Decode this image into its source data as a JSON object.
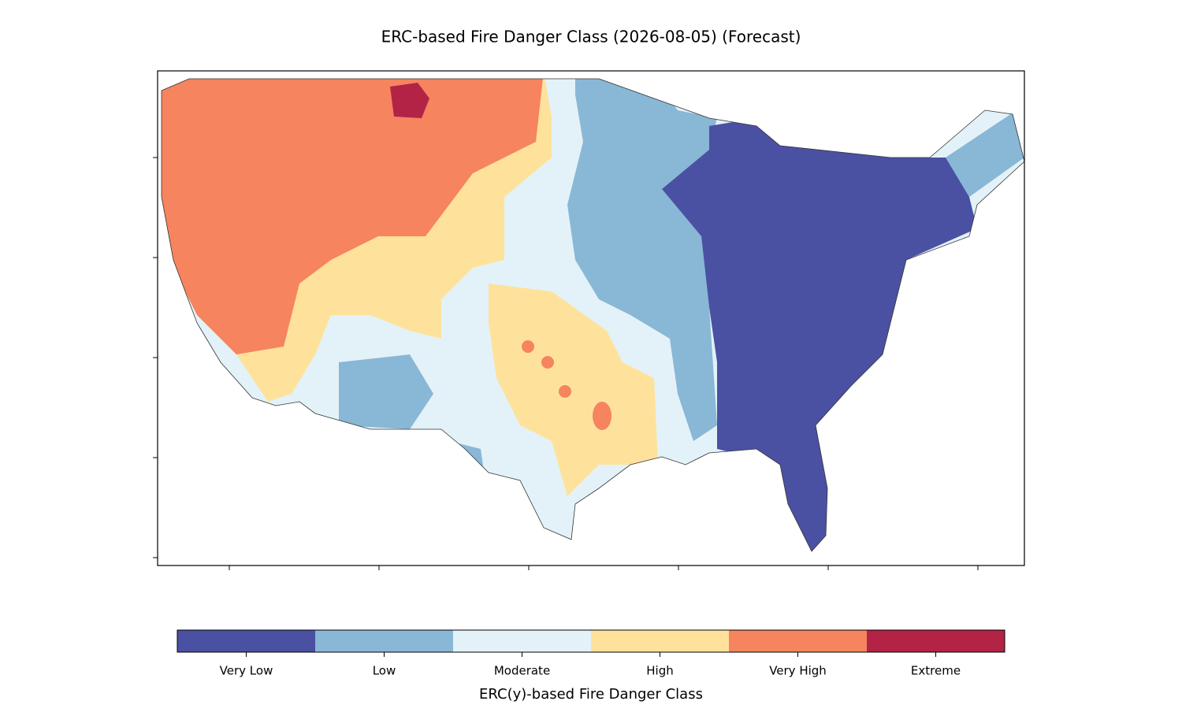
{
  "title": "ERC-based Fire Danger Class (2026-08-05) (Forecast)",
  "colorbar": {
    "label": "ERC(y)-based Fire Danger Class",
    "classes": [
      {
        "name": "Very Low",
        "color": "#4a51a3"
      },
      {
        "name": "Low",
        "color": "#89b7d6"
      },
      {
        "name": "Moderate",
        "color": "#e3f2f8"
      },
      {
        "name": "High",
        "color": "#fee29b"
      },
      {
        "name": "Very High",
        "color": "#f5845f"
      },
      {
        "name": "Extreme",
        "color": "#b32346"
      }
    ]
  }
}
